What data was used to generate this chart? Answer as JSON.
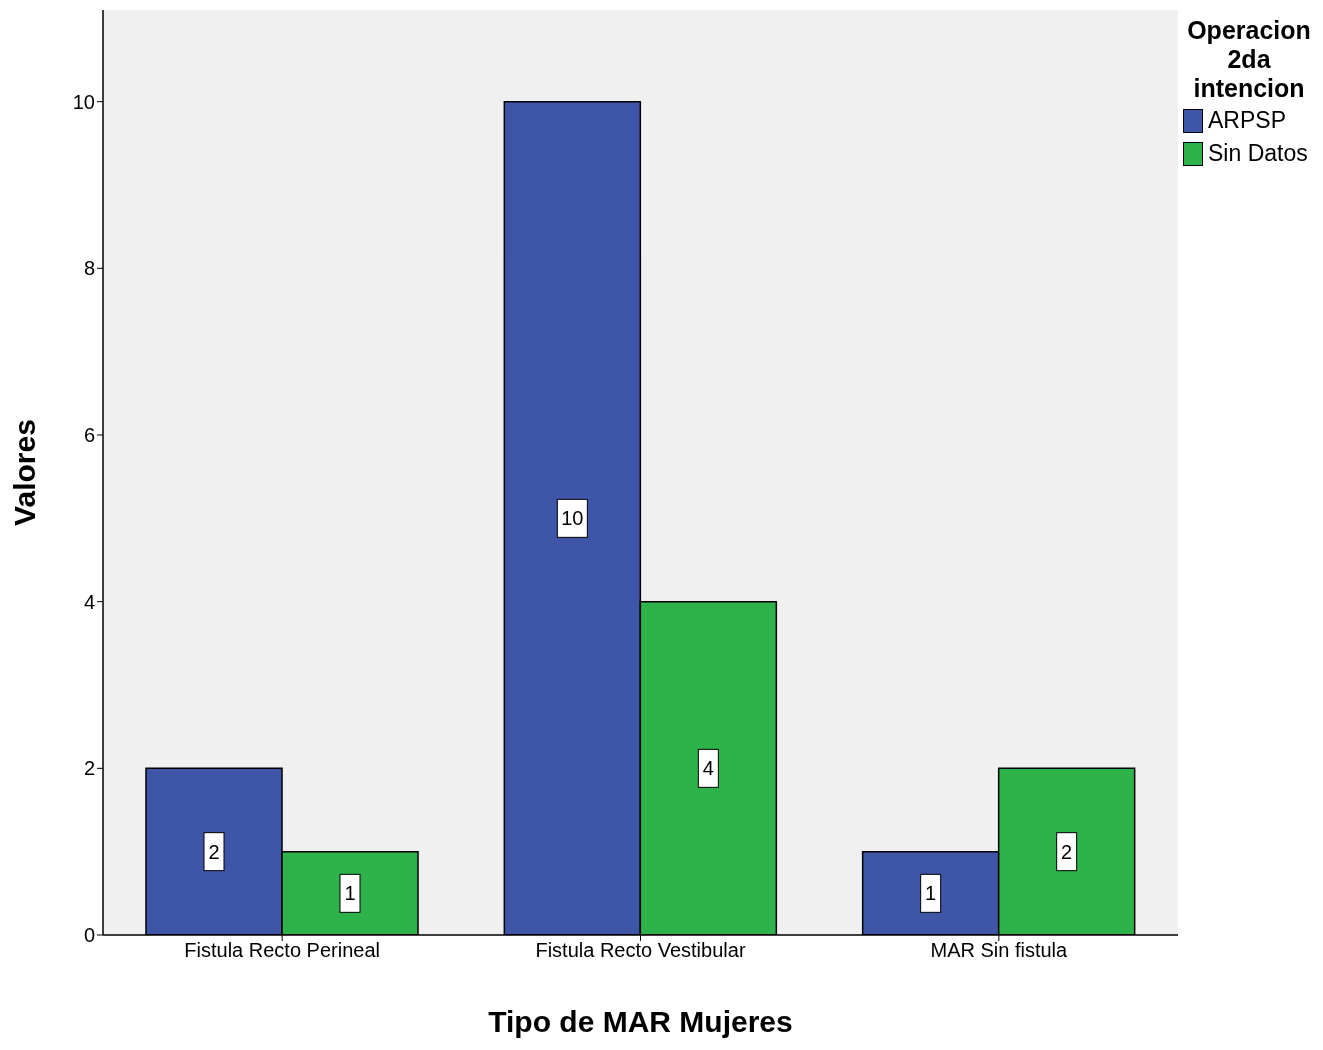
{
  "chart_data": {
    "type": "bar",
    "xlabel": "Tipo de MAR Mujeres",
    "ylabel": "Valores",
    "legend_title": "Operacion 2da intencion",
    "legend": "top right",
    "categories": [
      "Fistula Recto Perineal",
      "Fistula Recto Vestibular",
      "MAR Sin fistula"
    ],
    "series": [
      {
        "name": "ARPSP",
        "color": "#3f56a8",
        "values": [
          2,
          10,
          1
        ]
      },
      {
        "name": "Sin Datos",
        "color": "#2db34a",
        "values": [
          1,
          4,
          2
        ]
      }
    ],
    "ylim": [
      0,
      11.1
    ],
    "yticks": [
      0,
      2,
      4,
      6,
      8,
      10
    ],
    "data_labels": true
  }
}
